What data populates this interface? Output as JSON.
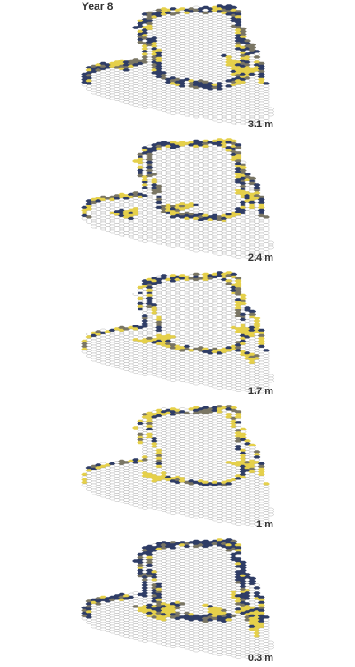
{
  "figure": {
    "title": "Year 8",
    "colors": {
      "background": "#ffffff",
      "grid_stroke": "#9a9a9a",
      "empty_fill": "#ffffff",
      "low": "#2f3d66",
      "mid": "#7a7664",
      "high": "#e5d04b"
    },
    "panels": [
      {
        "label": "3.1 m"
      },
      {
        "label": "2.4 m"
      },
      {
        "label": "1.7 m"
      },
      {
        "label": "1 m"
      },
      {
        "label": "0.3 m"
      }
    ]
  }
}
